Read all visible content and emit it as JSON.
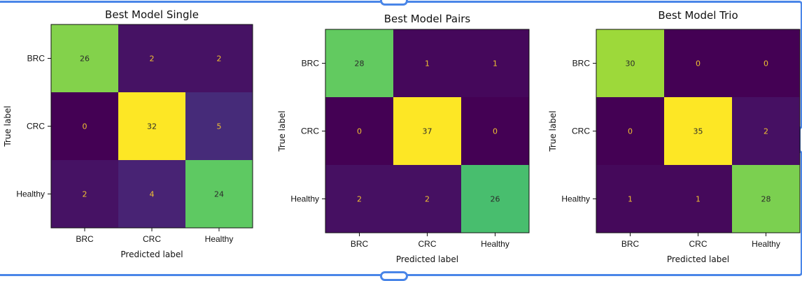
{
  "chart_data": [
    {
      "type": "heatmap",
      "title": "Best Model Single",
      "xlabel": "Predicted label",
      "ylabel": "True label",
      "x_categories": [
        "BRC",
        "CRC",
        "Healthy"
      ],
      "y_categories": [
        "BRC",
        "CRC",
        "Healthy"
      ],
      "values": [
        [
          26,
          2,
          2
        ],
        [
          0,
          32,
          5
        ],
        [
          2,
          4,
          24
        ]
      ],
      "colormap": "viridis"
    },
    {
      "type": "heatmap",
      "title": "Best Model Pairs",
      "xlabel": "Predicted label",
      "ylabel": "True label",
      "x_categories": [
        "BRC",
        "CRC",
        "Healthy"
      ],
      "y_categories": [
        "BRC",
        "CRC",
        "Healthy"
      ],
      "values": [
        [
          28,
          1,
          1
        ],
        [
          0,
          37,
          0
        ],
        [
          2,
          2,
          26
        ]
      ],
      "colormap": "viridis"
    },
    {
      "type": "heatmap",
      "title": "Best Model Trio",
      "xlabel": "Predicted label",
      "ylabel": "True label",
      "x_categories": [
        "BRC",
        "CRC",
        "Healthy"
      ],
      "y_categories": [
        "BRC",
        "CRC",
        "Healthy"
      ],
      "values": [
        [
          30,
          0,
          0
        ],
        [
          0,
          35,
          2
        ],
        [
          1,
          1,
          28
        ]
      ],
      "colormap": "viridis"
    }
  ],
  "colors": {
    "frame": "#4a86e8",
    "text_on_dark": "#f1c232",
    "text_on_light": "#2b2b2b"
  }
}
